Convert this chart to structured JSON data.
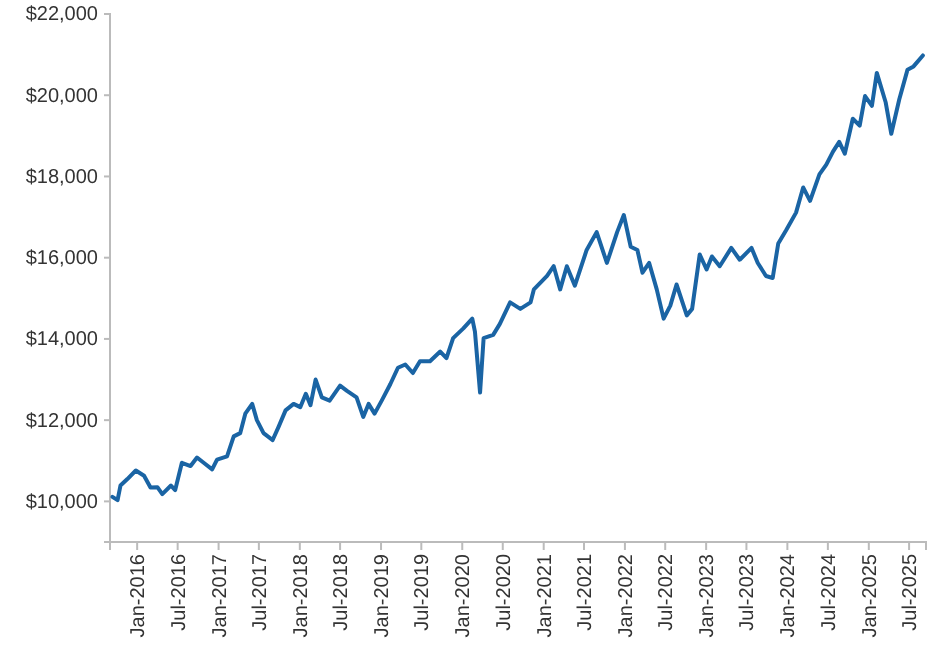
{
  "chart_data": {
    "type": "line",
    "x": [
      "2015-09-12",
      "2015-10-05",
      "2015-10-18",
      "2015-11-18",
      "2015-12-26",
      "2016-02-01",
      "2016-03-01",
      "2016-04-01",
      "2016-04-23",
      "2016-06-01",
      "2016-06-20",
      "2016-07-20",
      "2016-08-28",
      "2016-09-26",
      "2016-10-26",
      "2016-12-03",
      "2016-12-25",
      "2017-02-08",
      "2017-03-10",
      "2017-04-08",
      "2017-05-01",
      "2017-06-01",
      "2017-06-22",
      "2017-07-22",
      "2017-09-01",
      "2017-09-28",
      "2017-10-29",
      "2017-12-04",
      "2018-01-03",
      "2018-01-28",
      "2018-02-18",
      "2018-03-13",
      "2018-04-10",
      "2018-05-15",
      "2018-07-01",
      "2018-08-01",
      "2018-09-13",
      "2018-10-13",
      "2018-11-06",
      "2018-12-03",
      "2019-01-04",
      "2019-02-12",
      "2019-03-18",
      "2019-04-20",
      "2019-05-24",
      "2019-06-25",
      "2019-08-09",
      "2019-09-24",
      "2019-10-22",
      "2019-11-21",
      "2020-01-06",
      "2020-02-15",
      "2020-02-27",
      "2020-03-21",
      "2020-04-06",
      "2020-05-19",
      "2020-06-18",
      "2020-08-03",
      "2020-09-18",
      "2020-11-03",
      "2020-11-18",
      "2021-01-16",
      "2021-02-15",
      "2021-03-16",
      "2021-04-15",
      "2021-05-21",
      "2021-07-13",
      "2021-08-27",
      "2021-10-12",
      "2021-11-27",
      "2021-12-27",
      "2022-01-27",
      "2022-02-26",
      "2022-03-21",
      "2022-04-20",
      "2022-05-24",
      "2022-06-24",
      "2022-07-24",
      "2022-08-21",
      "2022-10-06",
      "2022-10-30",
      "2022-12-03",
      "2023-01-03",
      "2023-01-27",
      "2023-03-03",
      "2023-04-24",
      "2023-06-01",
      "2023-07-24",
      "2023-08-21",
      "2023-09-27",
      "2023-10-27",
      "2023-11-21",
      "2023-12-27",
      "2024-02-09",
      "2024-03-12",
      "2024-04-12",
      "2024-05-24",
      "2024-06-24",
      "2024-07-24",
      "2024-08-21",
      "2024-09-15",
      "2024-10-21",
      "2024-11-21",
      "2024-12-15",
      "2025-01-15",
      "2025-02-06",
      "2025-03-18",
      "2025-04-12",
      "2025-05-18",
      "2025-06-24",
      "2025-07-21",
      "2025-09-01"
    ],
    "series": [
      {
        "color": "#1a64a4",
        "values": [
          10110,
          10030,
          10390,
          10550,
          10760,
          10630,
          10340,
          10350,
          10180,
          10390,
          10280,
          10950,
          10870,
          11080,
          10950,
          10790,
          11030,
          11110,
          11600,
          11680,
          12160,
          12400,
          12000,
          11680,
          11510,
          11840,
          12240,
          12400,
          12320,
          12650,
          12370,
          13000,
          12560,
          12480,
          12850,
          12720,
          12560,
          12080,
          12400,
          12160,
          12480,
          12890,
          13290,
          13370,
          13160,
          13450,
          13450,
          13690,
          13530,
          14020,
          14260,
          14500,
          14180,
          12680,
          14020,
          14100,
          14370,
          14900,
          14740,
          14900,
          15220,
          15550,
          15790,
          15220,
          15790,
          15310,
          16190,
          16630,
          15870,
          16630,
          17050,
          16270,
          16190,
          15630,
          15870,
          15220,
          14500,
          14820,
          15340,
          14580,
          14740,
          16080,
          15710,
          16030,
          15790,
          16240,
          15950,
          16240,
          15870,
          15550,
          15500,
          16350,
          16680,
          17110,
          17730,
          17400,
          18050,
          18290,
          18610,
          18850,
          18560,
          19420,
          19250,
          19980,
          19740,
          20550,
          19820,
          19050,
          19900,
          20630,
          20710,
          20980
        ]
      }
    ],
    "xlim": [
      "2015-09-01",
      "2025-09-15"
    ],
    "xticks": [
      {
        "value": "2016-01-01",
        "label": "Jan-2016"
      },
      {
        "value": "2016-07-01",
        "label": "Jul-2016"
      },
      {
        "value": "2017-01-01",
        "label": "Jan-2017"
      },
      {
        "value": "2017-07-01",
        "label": "Jul-2017"
      },
      {
        "value": "2018-01-01",
        "label": "Jan-2018"
      },
      {
        "value": "2018-07-01",
        "label": "Jul-2018"
      },
      {
        "value": "2019-01-01",
        "label": "Jan-2019"
      },
      {
        "value": "2019-07-01",
        "label": "Jul-2019"
      },
      {
        "value": "2020-01-01",
        "label": "Jan-2020"
      },
      {
        "value": "2020-07-01",
        "label": "Jul-2020"
      },
      {
        "value": "2021-01-01",
        "label": "Jan-2021"
      },
      {
        "value": "2021-07-01",
        "label": "Jul-2021"
      },
      {
        "value": "2022-01-01",
        "label": "Jan-2022"
      },
      {
        "value": "2022-07-01",
        "label": "Jul-2022"
      },
      {
        "value": "2023-01-01",
        "label": "Jan-2023"
      },
      {
        "value": "2023-07-01",
        "label": "Jul-2023"
      },
      {
        "value": "2024-01-01",
        "label": "Jan-2024"
      },
      {
        "value": "2024-07-01",
        "label": "Jul-2024"
      },
      {
        "value": "2025-01-01",
        "label": "Jan-2025"
      },
      {
        "value": "2025-07-01",
        "label": "Jul-2025"
      }
    ],
    "ylim": [
      9000,
      22000
    ],
    "yticks": [
      {
        "value": 10000,
        "label": "$10,000"
      },
      {
        "value": 12000,
        "label": "$12,000"
      },
      {
        "value": 14000,
        "label": "$14,000"
      },
      {
        "value": 16000,
        "label": "$16,000"
      },
      {
        "value": 18000,
        "label": "$18,000"
      },
      {
        "value": 20000,
        "label": "$20,000"
      },
      {
        "value": 22000,
        "label": "$22,000"
      }
    ],
    "marker": "none",
    "line_style": "solid"
  }
}
